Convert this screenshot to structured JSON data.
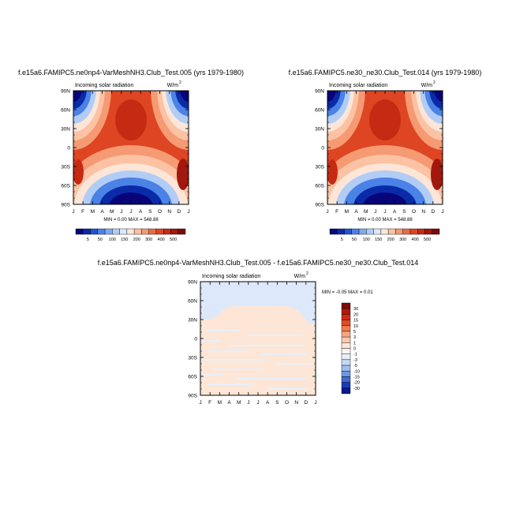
{
  "chart_data": [
    {
      "type": "heatmap",
      "title": "f.e15a6.FAMIPC5.ne0np4-VarMeshNH3.Club_Test.005 (yrs 1979-1980)",
      "left_label": "Incoming solar radiation",
      "unit_label": "W/m",
      "unit_sup": "2",
      "x_ticks": [
        "J",
        "F",
        "M",
        "A",
        "M",
        "J",
        "J",
        "A",
        "S",
        "O",
        "N",
        "D",
        "J"
      ],
      "y_ticks": [
        "90N",
        "60N",
        "30N",
        "0",
        "30S",
        "60S",
        "90S"
      ],
      "stats_text": "MIN =   0.00 MAX = 548.88",
      "min": 0.0,
      "max": 548.88,
      "colorbar": {
        "levels": [
          "5",
          "50",
          "100",
          "150",
          "200",
          "300",
          "400",
          "500"
        ],
        "colors": [
          "#08047a",
          "#0a2ba8",
          "#2255cf",
          "#4a82e6",
          "#7eaaf0",
          "#b1cdf6",
          "#dde9fb",
          "#fde6d8",
          "#fbc2a3",
          "#f59a73",
          "#ec6b45",
          "#de4523",
          "#c62a12",
          "#a3180e",
          "#7d0b0b"
        ]
      }
    },
    {
      "type": "heatmap",
      "title": "f.e15a6.FAMIPC5.ne30_ne30.Club_Test.014 (yrs 1979-1980)",
      "left_label": "Incoming solar radiation",
      "unit_label": "W/m",
      "unit_sup": "2",
      "x_ticks": [
        "J",
        "F",
        "M",
        "A",
        "M",
        "J",
        "J",
        "A",
        "S",
        "O",
        "N",
        "D",
        "J"
      ],
      "y_ticks": [
        "90N",
        "60N",
        "30N",
        "0",
        "30S",
        "60S",
        "90S"
      ],
      "stats_text": "MIN =   0.00 MAX = 548.88",
      "min": 0.0,
      "max": 548.88,
      "colorbar": {
        "levels": [
          "5",
          "50",
          "100",
          "150",
          "200",
          "300",
          "400",
          "500"
        ],
        "colors": [
          "#08047a",
          "#0a2ba8",
          "#2255cf",
          "#4a82e6",
          "#7eaaf0",
          "#b1cdf6",
          "#dde9fb",
          "#fde6d8",
          "#fbc2a3",
          "#f59a73",
          "#ec6b45",
          "#de4523",
          "#c62a12",
          "#a3180e",
          "#7d0b0b"
        ]
      }
    },
    {
      "type": "heatmap",
      "title": "f.e15a6.FAMIPC5.ne0np4-VarMeshNH3.Club_Test.005 - f.e15a6.FAMIPC5.ne30_ne30.Club_Test.014",
      "left_label": "Incoming solar radiation",
      "unit_label": "W/m",
      "unit_sup": "2",
      "x_ticks": [
        "J",
        "F",
        "M",
        "A",
        "M",
        "J",
        "J",
        "A",
        "S",
        "O",
        "N",
        "D",
        "J"
      ],
      "y_ticks": [
        "90N",
        "60N",
        "30N",
        "0",
        "30S",
        "60S",
        "90S"
      ],
      "stats_text": "MIN =  -0.05 MAX =   0.01",
      "min": -0.05,
      "max": 0.01,
      "colorbar": {
        "levels": [
          "30",
          "20",
          "15",
          "10",
          "5",
          "3",
          "1",
          "0",
          "-1",
          "-3",
          "-5",
          "-10",
          "-15",
          "-20",
          "-30"
        ],
        "colors": [
          "#7d0b0b",
          "#b0180d",
          "#d02a14",
          "#e34a26",
          "#f07a4e",
          "#f8a47f",
          "#fcc9ad",
          "#fde6d6",
          "#fdf2ec",
          "#e6f0fb",
          "#c3d9f5",
          "#9dbdee",
          "#6f97e0",
          "#3f6bd0",
          "#1a3bb3",
          "#0a1a8a"
        ]
      }
    }
  ]
}
